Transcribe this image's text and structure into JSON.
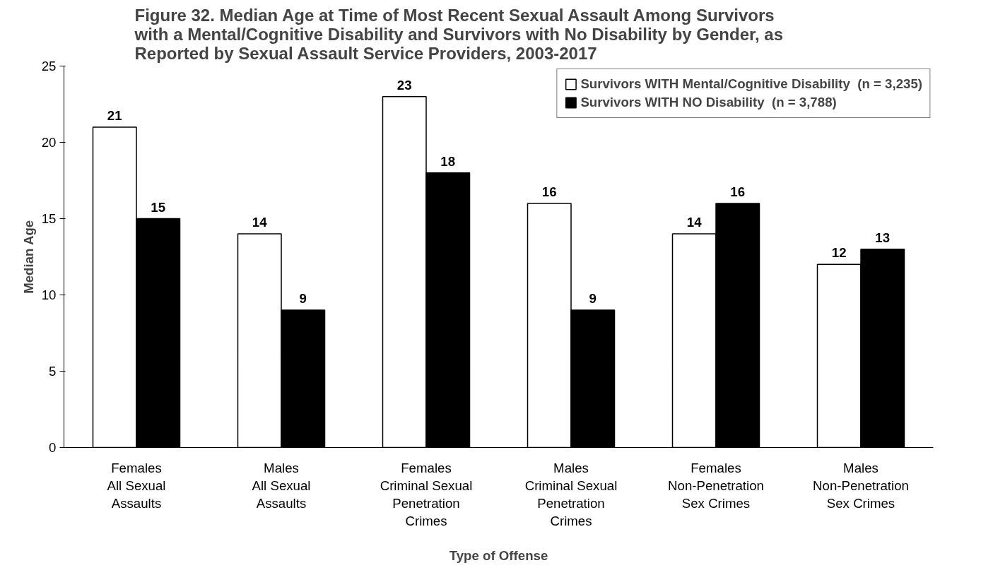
{
  "chart_data": {
    "type": "bar",
    "title": "Figure 32. Median Age at Time of Most Recent Sexual Assault Among Survivors\nwith a Mental/Cognitive Disability and Survivors with No Disability by Gender, as\nReported by Sexual Assault Service Providers, 2003-2017",
    "xlabel": "Type of Offense",
    "ylabel": "Median Age",
    "categories": [
      "Females\nAll Sexual\nAssaults",
      "Males\nAll Sexual\nAssaults",
      "Females\nCriminal Sexual\nPenetration\nCrimes",
      "Males\nCriminal Sexual\nPenetration\nCrimes",
      "Females\nNon-Penetration\nSex Crimes",
      "Males\nNon-Penetration\nSex Crimes"
    ],
    "series": [
      {
        "name": "Survivors WITH Mental/Cognitive Disability  (n = 3,235)",
        "color": "#ffffff",
        "values": [
          21,
          14,
          23,
          16,
          14,
          12
        ]
      },
      {
        "name": "Survivors WITH NO Disability  (n = 3,788)",
        "color": "#000000",
        "values": [
          15,
          9,
          18,
          9,
          16,
          13
        ]
      }
    ],
    "ylim": [
      0,
      25
    ],
    "yticks": [
      0,
      5,
      10,
      15,
      20,
      25
    ],
    "grid": false,
    "legend": "top right",
    "data_labels": true
  }
}
